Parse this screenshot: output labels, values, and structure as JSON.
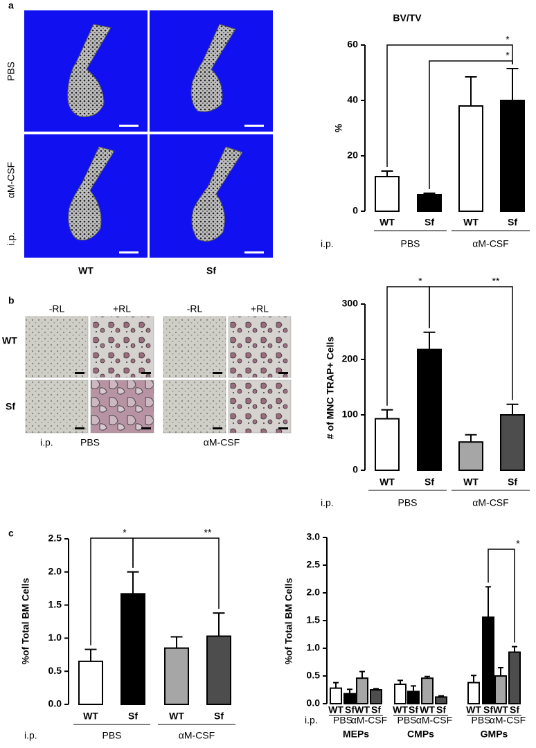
{
  "figure": {
    "panel_a": {
      "label": "a",
      "row_labels": [
        "PBS",
        "αM-CSF"
      ],
      "row_prefix": "i.p.",
      "column_labels": [
        "WT",
        "Sf"
      ]
    },
    "panel_b": {
      "label": "b",
      "column_labels": [
        "-RL",
        "+RL"
      ],
      "row_labels": [
        "WT",
        "Sf"
      ],
      "prefix": "i.p.",
      "group_labels": [
        "PBS",
        "αM-CSF"
      ]
    },
    "panel_c": {
      "label": "c"
    }
  },
  "chart_data": [
    {
      "type": "bar",
      "title": "BV/TV",
      "ylabel": "%",
      "categories": [
        "WT",
        "Sf",
        "WT",
        "Sf"
      ],
      "groups": [
        "PBS",
        "αM-CSF"
      ],
      "group_prefix": "i.p.",
      "values": [
        12.5,
        6,
        38,
        40
      ],
      "errors": [
        2,
        0.5,
        10.5,
        11.5
      ],
      "colors": [
        "#ffffff",
        "#000000",
        "#ffffff",
        "#000000"
      ],
      "ylim": [
        0,
        60
      ],
      "yticks": [
        0,
        20,
        40,
        60
      ],
      "annotations": [
        "*",
        "*"
      ]
    },
    {
      "type": "bar",
      "ylabel": "# of MNC TRAP+ Cells",
      "categories": [
        "WT",
        "Sf",
        "WT",
        "Sf"
      ],
      "groups": [
        "PBS",
        "αM-CSF"
      ],
      "group_prefix": "i.p.",
      "values": [
        93,
        218,
        51,
        100
      ],
      "errors": [
        16,
        31,
        13,
        19
      ],
      "colors": [
        "#ffffff",
        "#000000",
        "#a6a6a6",
        "#4d4d4d"
      ],
      "ylim": [
        0,
        300
      ],
      "yticks": [
        0,
        100,
        200,
        300
      ],
      "annotations": [
        "*",
        "**"
      ]
    },
    {
      "type": "bar",
      "ylabel": "%of Total BM Cells",
      "categories": [
        "WT",
        "Sf",
        "WT",
        "Sf"
      ],
      "groups": [
        "PBS",
        "αM-CSF"
      ],
      "group_prefix": "i.p.",
      "values": [
        0.65,
        1.67,
        0.85,
        1.03
      ],
      "errors": [
        0.18,
        0.33,
        0.17,
        0.35
      ],
      "colors": [
        "#ffffff",
        "#000000",
        "#a6a6a6",
        "#4d4d4d"
      ],
      "ylim": [
        0,
        2.5
      ],
      "yticks": [
        {
          "value": 0,
          "label": "0.0"
        },
        0.5,
        {
          "value": 1,
          "label": "1.0"
        },
        1.5,
        {
          "value": 2,
          "label": "2.0"
        },
        2.5
      ],
      "annotations": [
        "*",
        "**"
      ]
    },
    {
      "type": "grouped_bar",
      "ylabel": "%of Total BM Cells",
      "groups": [
        "MEPs",
        "CMPs",
        "GMPs"
      ],
      "categories": [
        "WT",
        "Sf",
        "WT",
        "Sf"
      ],
      "subgroups": [
        "PBS",
        "αM-CSF"
      ],
      "group_prefix": "i.p.",
      "values": [
        [
          0.28,
          0.18,
          0.46,
          0.25
        ],
        [
          0.35,
          0.22,
          0.46,
          0.12
        ],
        [
          0.38,
          1.56,
          0.5,
          0.93
        ]
      ],
      "errors": [
        [
          0.1,
          0.08,
          0.12,
          0.02
        ],
        [
          0.07,
          0.1,
          0.03,
          0.02
        ],
        [
          0.13,
          0.55,
          0.15,
          0.1
        ]
      ],
      "colors": [
        "#ffffff",
        "#000000",
        "#a6a6a6",
        "#4d4d4d"
      ],
      "ylim": [
        0,
        3
      ],
      "yticks": [
        {
          "value": 0,
          "label": "0.0"
        },
        0.5,
        {
          "value": 1,
          "label": "1.0"
        },
        1.5,
        {
          "value": 2,
          "label": "2.0"
        },
        2.5,
        {
          "value": 3,
          "label": "3.0"
        }
      ],
      "annotations": [
        "*"
      ]
    }
  ]
}
